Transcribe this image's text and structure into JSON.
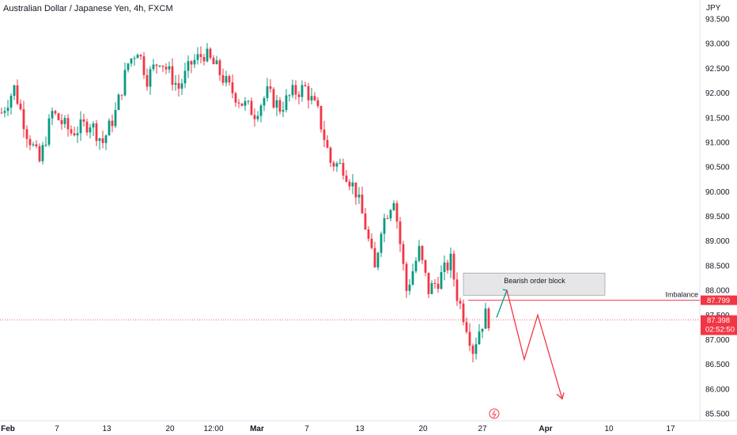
{
  "header": {
    "title": "Australian Dollar / Japanese Yen, 4h, FXCM",
    "unit": "JPY"
  },
  "colors": {
    "up": "#089981",
    "down": "#f23645",
    "box": "#e6e6e9",
    "text": "#131722"
  },
  "chart_data": {
    "type": "candlestick",
    "title": "Australian Dollar / Japanese Yen, 4h, FXCM",
    "ylabel": "JPY",
    "ylim": [
      85.5,
      93.5
    ],
    "y_ticks": [
      "93.500",
      "93.000",
      "92.500",
      "92.000",
      "91.500",
      "91.000",
      "90.500",
      "90.000",
      "89.500",
      "89.000",
      "88.500",
      "88.000",
      "87.500",
      "87.000",
      "86.500",
      "86.000",
      "85.500"
    ],
    "x_ticks": [
      {
        "label": "Feb",
        "bold": true
      },
      {
        "label": "7",
        "bold": false
      },
      {
        "label": "13",
        "bold": false
      },
      {
        "label": "20",
        "bold": false
      },
      {
        "label": "12:00",
        "bold": false
      },
      {
        "label": "Mar",
        "bold": true
      },
      {
        "label": "7",
        "bold": false
      },
      {
        "label": "13",
        "bold": false
      },
      {
        "label": "20",
        "bold": false
      },
      {
        "label": "27",
        "bold": false
      },
      {
        "label": "Apr",
        "bold": true
      },
      {
        "label": "10",
        "bold": false
      },
      {
        "label": "17",
        "bold": false
      }
    ],
    "candle_count": 155,
    "anchors": [
      [
        0,
        91.6
      ],
      [
        4,
        92.1
      ],
      [
        8,
        91.2
      ],
      [
        12,
        90.6
      ],
      [
        16,
        91.6
      ],
      [
        22,
        91.2
      ],
      [
        28,
        91.4
      ],
      [
        32,
        91.0
      ],
      [
        36,
        91.6
      ],
      [
        40,
        92.6
      ],
      [
        43,
        92.9
      ],
      [
        46,
        92.3
      ],
      [
        50,
        92.7
      ],
      [
        56,
        92.1
      ],
      [
        60,
        92.6
      ],
      [
        64,
        92.8
      ],
      [
        68,
        92.5
      ],
      [
        72,
        92.1
      ],
      [
        76,
        91.8
      ],
      [
        80,
        91.6
      ],
      [
        84,
        92.0
      ],
      [
        88,
        91.7
      ],
      [
        92,
        92.0
      ],
      [
        96,
        92.1
      ],
      [
        100,
        91.6
      ],
      [
        104,
        90.6
      ],
      [
        108,
        90.5
      ],
      [
        112,
        90.0
      ],
      [
        115,
        89.3
      ],
      [
        118,
        88.4
      ],
      [
        120,
        89.3
      ],
      [
        124,
        89.9
      ],
      [
        128,
        88.0
      ],
      [
        132,
        88.8
      ],
      [
        135,
        88.0
      ],
      [
        138,
        88.2
      ],
      [
        142,
        88.6
      ],
      [
        144,
        87.9
      ],
      [
        147,
        87.3
      ],
      [
        149,
        86.8
      ],
      [
        151,
        87.2
      ],
      [
        153,
        87.5
      ],
      [
        154,
        87.4
      ]
    ],
    "series": [
      {
        "name": "Imbalance",
        "value": 87.799
      },
      {
        "name": "",
        "value": 87.398
      }
    ],
    "annotations": [
      {
        "type": "box",
        "label": "Bearish order block",
        "from": 87.9,
        "to": 88.35
      },
      {
        "type": "line",
        "label": "Imbalance",
        "value": 87.799
      },
      {
        "type": "path",
        "points": [
          [
            87.45
          ],
          [
            88.0
          ],
          [
            86.6
          ],
          [
            87.5
          ],
          [
            85.8
          ]
        ]
      }
    ],
    "price_tags": [
      {
        "text": "87.799",
        "color": "#f23645"
      },
      {
        "text": "87.398",
        "text2": "02:52:50",
        "color": "#f23645"
      }
    ]
  }
}
